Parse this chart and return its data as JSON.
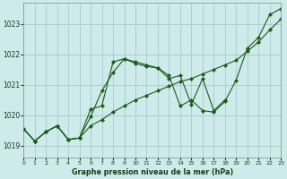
{
  "title": "Graphe pression niveau de la mer (hPa)",
  "bg_color": "#ceeaea",
  "grid_color": "#a8cccc",
  "line_color": "#1a5c1a",
  "xlim": [
    0,
    23
  ],
  "ylim": [
    1018.6,
    1023.7
  ],
  "yticks": [
    1019,
    1020,
    1021,
    1022,
    1023
  ],
  "xticks": [
    0,
    1,
    2,
    3,
    4,
    5,
    6,
    7,
    8,
    9,
    10,
    11,
    12,
    13,
    14,
    15,
    16,
    17,
    18,
    19,
    20,
    21,
    22,
    23
  ],
  "lineA_x": [
    0,
    1,
    2,
    3,
    4,
    5,
    6,
    7,
    8,
    9,
    10,
    11,
    12,
    13,
    14,
    15,
    16,
    17,
    18
  ],
  "lineA_y": [
    1019.55,
    1019.15,
    1019.45,
    1019.65,
    1019.2,
    1019.25,
    1019.95,
    1020.8,
    1021.4,
    1021.85,
    1021.75,
    1021.65,
    1021.55,
    1021.2,
    1021.3,
    1020.35,
    1021.2,
    1020.15,
    1020.5
  ],
  "lineB_x": [
    0,
    1,
    2,
    3,
    4,
    5,
    6,
    7,
    8,
    9,
    10,
    11,
    12,
    13,
    14,
    15,
    16,
    17,
    18,
    19,
    20,
    21,
    22,
    23
  ],
  "lineB_y": [
    1019.55,
    1019.15,
    1019.45,
    1019.65,
    1019.2,
    1019.25,
    1020.2,
    1020.3,
    1021.75,
    1021.85,
    1021.7,
    1021.6,
    1021.55,
    1021.3,
    1020.3,
    1020.5,
    1020.15,
    1020.1,
    1020.45,
    1021.15,
    1022.2,
    1022.55,
    1023.3,
    1023.5
  ],
  "lineC_x": [
    0,
    1,
    2,
    3,
    4,
    5,
    6,
    7,
    8,
    9,
    10,
    11,
    12,
    13,
    14,
    15,
    16,
    17,
    18,
    19,
    20,
    21,
    22,
    23
  ],
  "lineC_y": [
    1019.55,
    1019.15,
    1019.45,
    1019.65,
    1019.2,
    1019.25,
    1019.65,
    1019.85,
    1020.1,
    1020.3,
    1020.5,
    1020.65,
    1020.8,
    1020.95,
    1021.1,
    1021.2,
    1021.35,
    1021.5,
    1021.65,
    1021.8,
    1022.1,
    1022.4,
    1022.8,
    1023.15
  ]
}
